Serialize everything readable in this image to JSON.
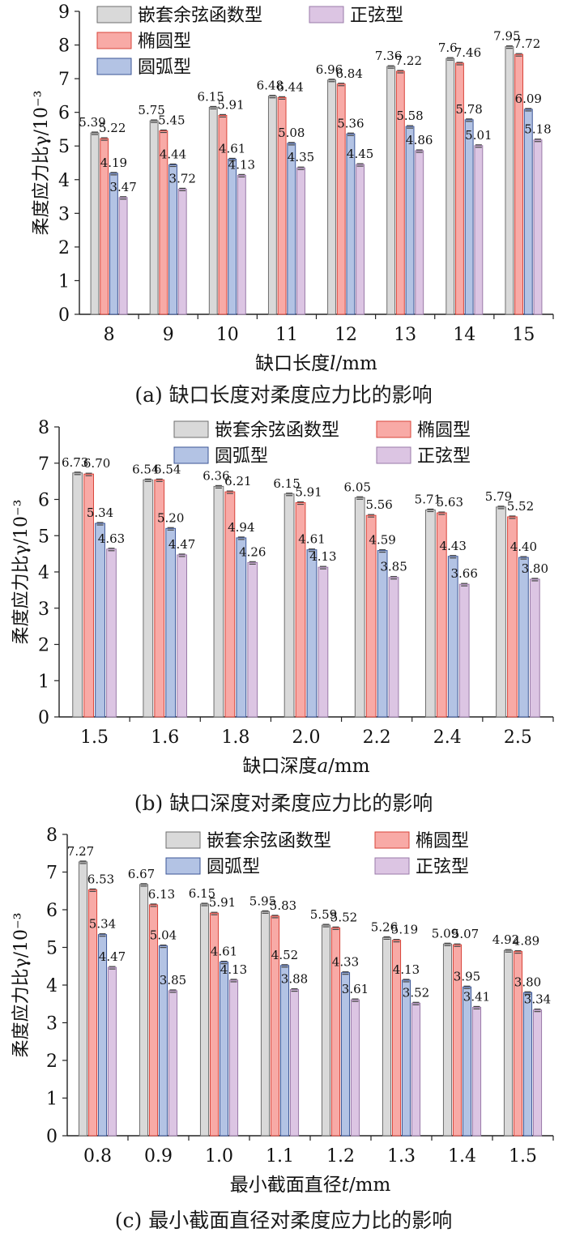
{
  "colors": {
    "嵌套余弦函数型": "#d9d9d9",
    "椭圆型": "#f8aaa6",
    "圆弧型": "#b3c3e4",
    "正弦型": "#dcc5e3"
  },
  "strokes": {
    "嵌套余弦函数型": "#6e6e6e",
    "椭圆型": "#d9443a",
    "圆弧型": "#3b5596",
    "正弦型": "#9a7aa8"
  },
  "chart_data": [
    {
      "id": "a",
      "type": "bar",
      "caption": "(a) 缺口长度对柔度应力比的影响",
      "xlabel_prefix": "缺口长度",
      "xlabel_var": "l",
      "xlabel_unit": "/mm",
      "ylabel": "柔度应力比γ/10⁻³",
      "ylim": [
        0,
        9
      ],
      "yticks": [
        "0",
        "1",
        "2",
        "3",
        "4",
        "5",
        "6",
        "7",
        "8",
        "9"
      ],
      "legend_layout": "two-column-top-left",
      "categories": [
        "8",
        "9",
        "10",
        "11",
        "12",
        "13",
        "14",
        "15"
      ],
      "series": [
        {
          "name": "嵌套余弦函数型",
          "values": [
            5.39,
            5.75,
            6.15,
            6.48,
            6.96,
            7.36,
            7.6,
            7.95
          ]
        },
        {
          "name": "椭圆型",
          "values": [
            5.22,
            5.45,
            5.91,
            6.44,
            6.84,
            7.22,
            7.46,
            7.72
          ]
        },
        {
          "name": "圆弧型",
          "values": [
            4.19,
            4.44,
            4.61,
            5.08,
            5.36,
            5.58,
            5.78,
            6.09
          ]
        },
        {
          "name": "正弦型",
          "values": [
            3.47,
            3.72,
            4.13,
            4.35,
            4.45,
            4.86,
            5.01,
            5.18
          ]
        }
      ],
      "labels": [
        [
          "5.39",
          "5.75",
          "6.15",
          "6.48",
          "6.96",
          "7.36",
          "7.6",
          "7.95"
        ],
        [
          "5.22",
          "5.45",
          "5.91",
          "6.44",
          "6.84",
          "7.22",
          "7.46",
          "7.72"
        ],
        [
          "4.19",
          "4.44",
          "4.61",
          "5.08",
          "5.36",
          "5.58",
          "5.78",
          "6.09"
        ],
        [
          "3.47",
          "3.72",
          "4.13",
          "4.35",
          "4.45",
          "4.86",
          "5.01",
          "5.18"
        ]
      ]
    },
    {
      "id": "b",
      "type": "bar",
      "caption": "(b) 缺口深度对柔度应力比的影响",
      "xlabel_prefix": "缺口深度",
      "xlabel_var": "a",
      "xlabel_unit": "/mm",
      "ylabel": "柔度应力比γ/10⁻³",
      "ylim": [
        0,
        8
      ],
      "yticks": [
        "0",
        "1",
        "2",
        "3",
        "4",
        "5",
        "6",
        "7",
        "8"
      ],
      "legend_layout": "two-column-top-right",
      "categories": [
        "1.5",
        "1.6",
        "1.8",
        "2.0",
        "2.2",
        "2.4",
        "2.5"
      ],
      "series": [
        {
          "name": "嵌套余弦函数型",
          "values": [
            6.73,
            6.54,
            6.36,
            6.15,
            6.05,
            5.71,
            5.79
          ]
        },
        {
          "name": "椭圆型",
          "values": [
            6.7,
            6.54,
            6.21,
            5.91,
            5.56,
            5.63,
            5.52
          ]
        },
        {
          "name": "圆弧型",
          "values": [
            5.34,
            5.2,
            4.94,
            4.61,
            4.59,
            4.43,
            4.4
          ]
        },
        {
          "name": "正弦型",
          "values": [
            4.63,
            4.47,
            4.26,
            4.13,
            3.85,
            3.66,
            3.8
          ]
        }
      ],
      "labels": [
        [
          "6.73",
          "6.54",
          "6.36",
          "6.15",
          "6.05",
          "5.71",
          "5.79"
        ],
        [
          "6.70",
          "6.54",
          "6.21",
          "5.91",
          "5.56",
          "5.63",
          "5.52"
        ],
        [
          "5.34",
          "5.20",
          "4.94",
          "4.61",
          "4.59",
          "4.43",
          "4.40"
        ],
        [
          "4.63",
          "4.47",
          "4.26",
          "4.13",
          "3.85",
          "3.66",
          "3.80"
        ]
      ]
    },
    {
      "id": "c",
      "type": "bar",
      "caption": "(c) 最小截面直径对柔度应力比的影响",
      "xlabel_prefix": "最小截面直径",
      "xlabel_var": "t",
      "xlabel_unit": "/mm",
      "ylabel": "柔度应力比γ/10⁻³",
      "ylim": [
        0,
        8
      ],
      "yticks": [
        "0",
        "1",
        "2",
        "3",
        "4",
        "5",
        "6",
        "7",
        "8"
      ],
      "legend_layout": "two-column-top-right",
      "categories": [
        "0.8",
        "0.9",
        "1.0",
        "1.1",
        "1.2",
        "1.3",
        "1.4",
        "1.5"
      ],
      "series": [
        {
          "name": "嵌套余弦函数型",
          "values": [
            7.27,
            6.67,
            6.15,
            5.95,
            5.59,
            5.26,
            5.09,
            4.92
          ]
        },
        {
          "name": "椭圆型",
          "values": [
            6.53,
            6.13,
            5.91,
            5.83,
            5.52,
            5.19,
            5.07,
            4.89
          ]
        },
        {
          "name": "圆弧型",
          "values": [
            5.34,
            5.04,
            4.61,
            4.52,
            4.33,
            4.13,
            3.95,
            3.8
          ]
        },
        {
          "name": "正弦型",
          "values": [
            4.47,
            3.85,
            4.13,
            3.88,
            3.61,
            3.52,
            3.41,
            3.34
          ]
        }
      ],
      "labels": [
        [
          "7.27",
          "6.67",
          "6.15",
          "5.95",
          "5.59",
          "5.26",
          "5.09",
          "4.92"
        ],
        [
          "6.53",
          "6.13",
          "5.91",
          "5.83",
          "5.52",
          "5.19",
          "5.07",
          "4.89"
        ],
        [
          "5.34",
          "5.04",
          "4.61",
          "4.52",
          "4.33",
          "4.13",
          "3.95",
          "3.80"
        ],
        [
          "4.47",
          "3.85",
          "4.13",
          "3.88",
          "3.61",
          "3.52",
          "3.41",
          "3.34"
        ]
      ]
    }
  ]
}
